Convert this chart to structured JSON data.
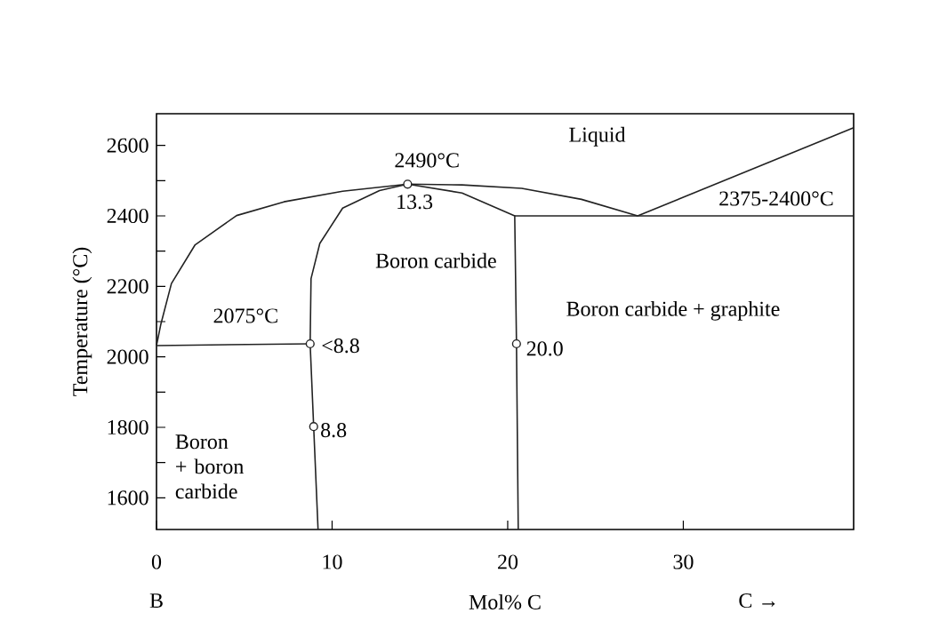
{
  "chart_data": {
    "type": "line",
    "xlabel": "Mol% C",
    "ylabel": "Temperature (°C)",
    "xlim": [
      0,
      39.7
    ],
    "ylim": [
      1510,
      2690
    ],
    "xticks": [
      0,
      10,
      20,
      30
    ],
    "yticks": [
      1600,
      {
        "value": 1700,
        "label": null
      },
      1800,
      {
        "value": 1900,
        "label": null
      },
      2000,
      {
        "value": 2100,
        "label": null
      },
      2200,
      {
        "value": 2300,
        "label": null
      },
      2400,
      {
        "value": 2500,
        "label": null
      },
      2600
    ],
    "series": [
      {
        "color": "#222222",
        "x": [
          0,
          0.24,
          0.85,
          2.2,
          4.56,
          7.26,
          10.6,
          14.3,
          17.4,
          20.8,
          24.2,
          27.4
        ],
        "values": [
          2032,
          2091,
          2208,
          2318,
          2401,
          2440,
          2470,
          2490,
          2488,
          2478,
          2447,
          2400
        ]
      },
      {
        "color": "#222222",
        "x": [
          14.3,
          12.7,
          10.6,
          9.3,
          8.8,
          8.75,
          8.95,
          9.2
        ],
        "values": [
          2490,
          2472,
          2422,
          2322,
          2222,
          2037,
          1802,
          1510
        ]
      },
      {
        "color": "#222222",
        "x": [
          14.3,
          17.4,
          20.4,
          20.5,
          20.6
        ],
        "values": [
          2490,
          2465,
          2400,
          2037,
          1510
        ]
      },
      {
        "color": "#222222",
        "x": [
          20.4,
          39.7
        ],
        "values": [
          2400,
          2400
        ]
      },
      {
        "color": "#222222",
        "x": [
          27.4,
          39.7
        ],
        "values": [
          2400,
          2650
        ]
      },
      {
        "color": "#222222",
        "x": [
          0,
          8.75
        ],
        "values": [
          2032,
          2037
        ]
      },
      {
        "type": "scatter",
        "marker": "circle",
        "color": "#222222",
        "x": [
          14.3,
          8.75,
          8.95,
          20.5
        ],
        "values": [
          2490,
          2037,
          1802,
          2037
        ]
      }
    ],
    "annotations": [
      "2490°C",
      "13.3",
      "Liquid",
      "2375-2400°C",
      "Boron carbide",
      "Boron carbide + graphite",
      "2075°C",
      "<8.8",
      "8.8",
      "20.0",
      "Boron + boron carbide",
      "B",
      "C →"
    ]
  }
}
